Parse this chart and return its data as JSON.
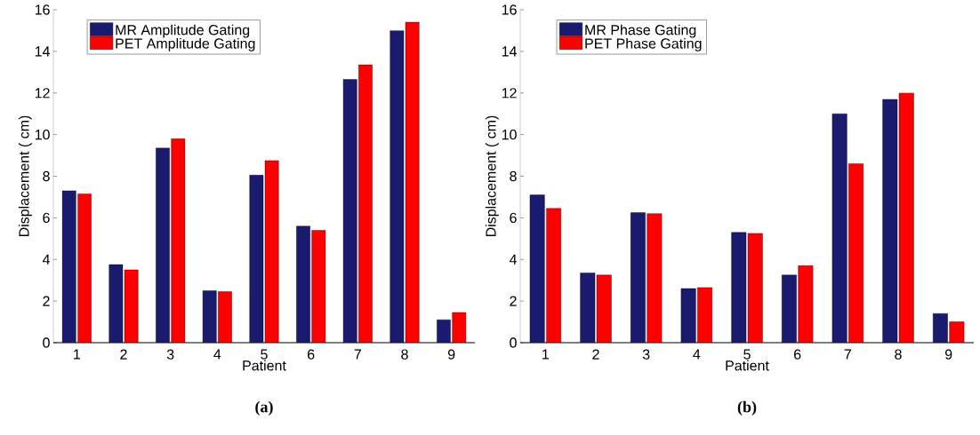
{
  "chart_data": [
    {
      "type": "bar",
      "title": "(a)",
      "xlabel": "Patient",
      "ylabel": "Displacement ( cm)",
      "categories": [
        "1",
        "2",
        "3",
        "4",
        "5",
        "6",
        "7",
        "8",
        "9"
      ],
      "series": [
        {
          "name": "MR Amplitude Gating",
          "color": "#1a1a6e",
          "values": [
            7.3,
            3.75,
            9.35,
            2.5,
            8.05,
            5.6,
            12.65,
            15.0,
            1.1
          ]
        },
        {
          "name": "PET Amplitude Gating",
          "color": "#ff0000",
          "values": [
            7.15,
            3.5,
            9.8,
            2.45,
            8.75,
            5.4,
            13.35,
            15.4,
            1.45
          ]
        }
      ],
      "ylim": [
        0,
        16
      ],
      "yticks": [
        0,
        2,
        4,
        6,
        8,
        10,
        12,
        14,
        16
      ],
      "legend": "top left"
    },
    {
      "type": "bar",
      "title": "(b)",
      "xlabel": "Patient",
      "ylabel": "Displacement ( cm)",
      "categories": [
        "1",
        "2",
        "3",
        "4",
        "5",
        "6",
        "7",
        "8",
        "9"
      ],
      "series": [
        {
          "name": "MR Phase Gating",
          "color": "#1a1a6e",
          "values": [
            7.1,
            3.35,
            6.25,
            2.6,
            5.3,
            3.25,
            11.0,
            11.7,
            1.4
          ]
        },
        {
          "name": "PET Phase Gating",
          "color": "#ff0000",
          "values": [
            6.45,
            3.25,
            6.2,
            2.65,
            5.25,
            3.7,
            8.6,
            12.0,
            1.0
          ]
        }
      ],
      "ylim": [
        0,
        16
      ],
      "yticks": [
        0,
        2,
        4,
        6,
        8,
        10,
        12,
        14,
        16
      ],
      "legend": "top left"
    }
  ]
}
